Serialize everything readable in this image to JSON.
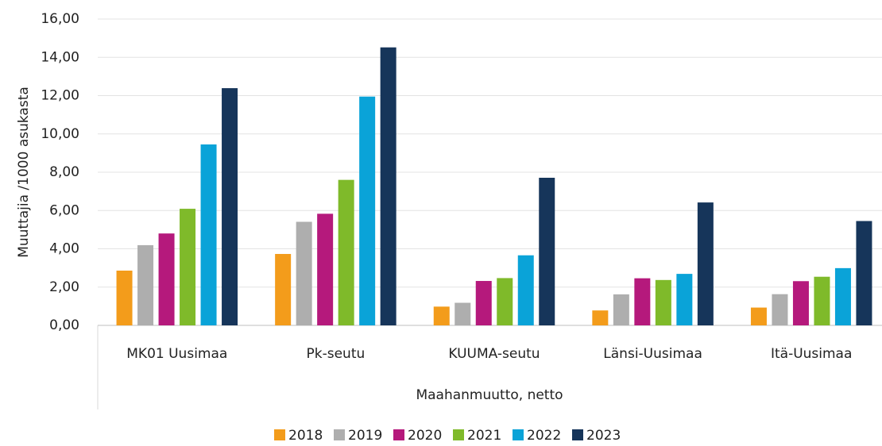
{
  "chart_data": {
    "type": "bar",
    "ylabel": "Muuttajia /1000 asukasta",
    "xlabel": "Maahanmuutto, netto",
    "categories": [
      "MK01 Uusimaa",
      "Pk-seutu",
      "KUUMA-seutu",
      "Länsi-Uusimaa",
      "Itä-Uusimaa"
    ],
    "series": [
      {
        "name": "2018",
        "color": "#f39c1b",
        "values": [
          2.86,
          3.73,
          0.98,
          0.78,
          0.93
        ]
      },
      {
        "name": "2019",
        "color": "#aeaeae",
        "values": [
          4.19,
          5.41,
          1.18,
          1.62,
          1.63
        ]
      },
      {
        "name": "2020",
        "color": "#b5197c",
        "values": [
          4.8,
          5.83,
          2.32,
          2.46,
          2.31
        ]
      },
      {
        "name": "2021",
        "color": "#7fba2a",
        "values": [
          6.09,
          7.6,
          2.47,
          2.37,
          2.54
        ]
      },
      {
        "name": "2022",
        "color": "#0aa3d8",
        "values": [
          9.45,
          11.95,
          3.66,
          2.69,
          2.99
        ]
      },
      {
        "name": "2023",
        "color": "#16355a",
        "values": [
          12.39,
          14.52,
          7.71,
          6.42,
          5.45
        ]
      }
    ],
    "ylim": [
      0,
      16
    ],
    "yticks": [
      {
        "value": 0,
        "label": "0,00"
      },
      {
        "value": 2,
        "label": "2,00"
      },
      {
        "value": 4,
        "label": "4,00"
      },
      {
        "value": 6,
        "label": "6,00"
      },
      {
        "value": 8,
        "label": "8,00"
      },
      {
        "value": 10,
        "label": "10,00"
      },
      {
        "value": 12,
        "label": "12,00"
      },
      {
        "value": 14,
        "label": "14,00"
      },
      {
        "value": 16,
        "label": "16,00"
      }
    ],
    "grid": true,
    "legend": "bottom"
  }
}
